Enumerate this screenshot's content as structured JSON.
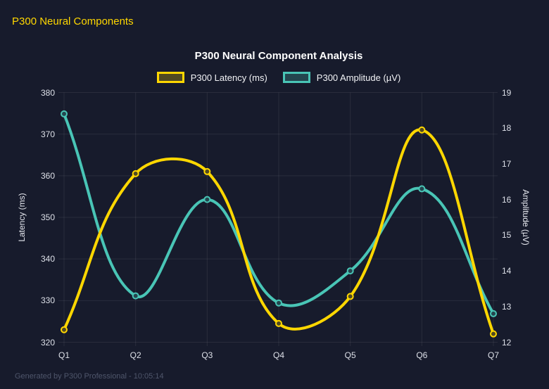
{
  "header": {
    "title": "P300 Neural Components"
  },
  "footer": {
    "text": "Generated by P300 Professional - 10:05:14"
  },
  "chart_data": {
    "type": "line",
    "title": "P300 Neural Component Analysis",
    "categories": [
      "Q1",
      "Q2",
      "Q3",
      "Q4",
      "Q5",
      "Q6",
      "Q7"
    ],
    "series": [
      {
        "name": "P300 Latency (ms)",
        "axis": "left",
        "color": "#ffd700",
        "values": [
          323,
          360.5,
          361,
          324.5,
          331,
          371,
          322
        ]
      },
      {
        "name": "P300 Amplitude (µV)",
        "axis": "right",
        "color": "#49c5b6",
        "values": [
          18.4,
          13.3,
          16,
          13.1,
          14,
          16.3,
          12.8
        ]
      }
    ],
    "left_axis": {
      "label": "Latency (ms)",
      "ticks": [
        380,
        370,
        360,
        350,
        340,
        330,
        320
      ],
      "range": [
        320,
        380
      ]
    },
    "right_axis": {
      "label": "Amplitude (µV)",
      "ticks": [
        19,
        18,
        17,
        16,
        15,
        14,
        13,
        12
      ],
      "range": [
        12,
        19
      ]
    },
    "grid": true,
    "legend_position": "top",
    "line_tension": 0.4,
    "colors": {
      "background": "#171b2c",
      "grid": "rgba(255,255,255,0.08)",
      "tick_text": "#dde0e8",
      "title_text": "#ffffff",
      "header_text": "#ffd700",
      "footer_text": "#4f566b"
    }
  }
}
